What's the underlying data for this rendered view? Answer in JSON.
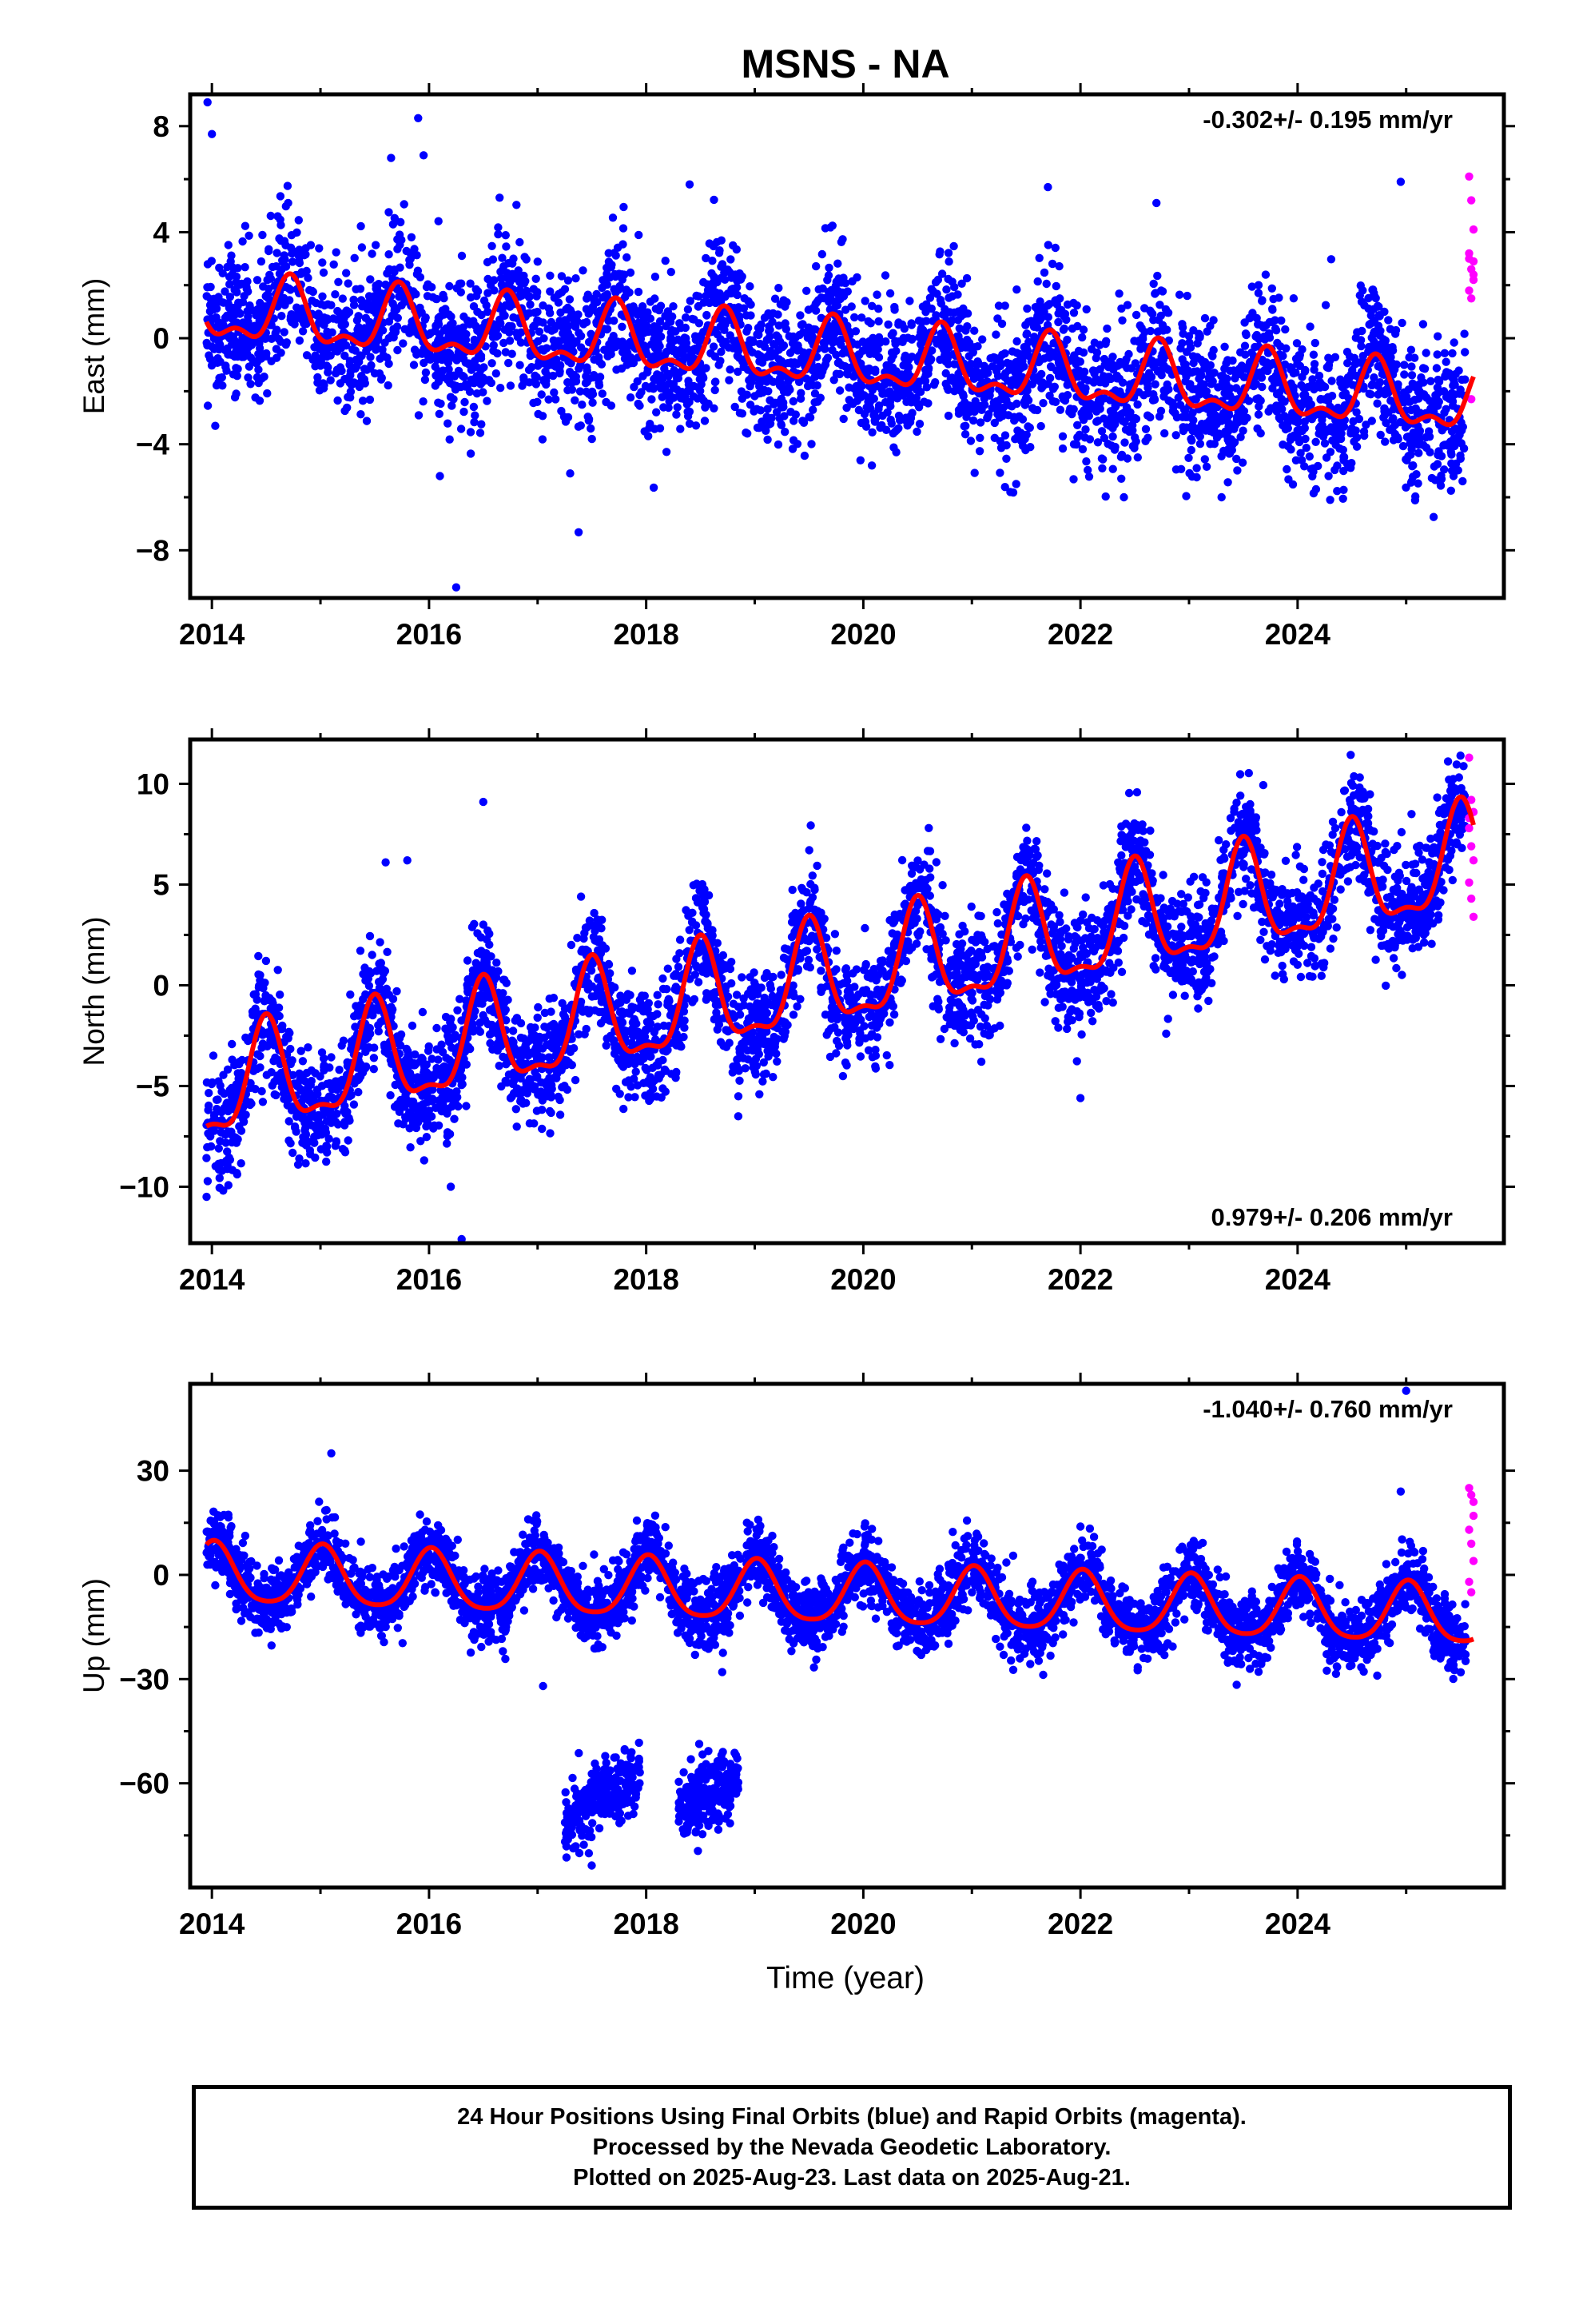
{
  "figure": {
    "title": "MSNS - NA",
    "xlabel": "Time (year)"
  },
  "footer": {
    "line1": "24 Hour Positions Using Final Orbits (blue) and Rapid Orbits (magenta).",
    "line2": "Processed by the Nevada Geodetic Laboratory.",
    "line3": "Plotted on 2025-Aug-23. Last data on 2025-Aug-21."
  },
  "colors": {
    "final_orbits": "#0000ff",
    "rapid_orbits": "#ff00ff",
    "model_fit": "#ff0000",
    "frame": "#000000"
  },
  "chart_data": [
    {
      "type": "scatter",
      "ylabel": "East (mm)",
      "rate_label": "-0.302+/- 0.195 mm/yr",
      "rate_position": "top-right",
      "xlim": [
        2013.8,
        2025.9
      ],
      "ylim": [
        -9.8,
        9.2
      ],
      "x_ticks": [
        2014,
        2016,
        2018,
        2020,
        2022,
        2024
      ],
      "x_minor_ticks": [
        2015,
        2017,
        2019,
        2021,
        2023,
        2025
      ],
      "y_ticks": [
        8,
        4,
        0,
        -4,
        -8
      ],
      "y_minor_ticks": [
        6,
        2,
        -2,
        -6
      ],
      "fit": {
        "trend_mm_per_yr": -0.302,
        "offset_2014": 1.0,
        "annual_amplitude": 1.1,
        "annual_phase_peak": 0.72,
        "semiannual_amplitude": 0.55,
        "semiannual_phase_peak": 0.72
      },
      "scatter_sd": 1.35,
      "series": [
        {
          "name": "Final Orbits",
          "x_range": [
            2013.95,
            2025.55
          ],
          "points_count": 4100
        },
        {
          "name": "Rapid Orbits",
          "x_range": [
            2025.57,
            2025.64
          ],
          "points_count": 25,
          "y_values": [
            6.1,
            5.2,
            4.1,
            3.2,
            2.6,
            2.4,
            1.8,
            1.5,
            2.2,
            3.0,
            -2.3,
            2.9
          ]
        }
      ],
      "outliers": [
        [
          2013.96,
          8.9
        ],
        [
          2014.0,
          7.7
        ],
        [
          2015.65,
          6.8
        ],
        [
          2015.9,
          8.3
        ],
        [
          2015.95,
          6.9
        ],
        [
          2016.25,
          -9.4
        ],
        [
          2016.1,
          -5.2
        ],
        [
          2016.65,
          5.3
        ],
        [
          2017.3,
          -5.1
        ],
        [
          2017.5,
          -3.8
        ],
        [
          2018.4,
          5.8
        ],
        [
          2021.7,
          5.7
        ],
        [
          2022.4,
          -6.0
        ],
        [
          2022.7,
          5.1
        ],
        [
          2023.3,
          -6.0
        ],
        [
          2024.3,
          -6.1
        ],
        [
          2024.95,
          5.9
        ]
      ]
    },
    {
      "type": "scatter",
      "ylabel": "North (mm)",
      "rate_label": "0.979+/- 0.206 mm/yr",
      "rate_position": "bottom-right",
      "xlim": [
        2013.8,
        2025.9
      ],
      "ylim": [
        -12.8,
        12.2
      ],
      "x_ticks": [
        2014,
        2016,
        2018,
        2020,
        2022,
        2024
      ],
      "x_minor_ticks": [
        2015,
        2017,
        2019,
        2021,
        2023,
        2025
      ],
      "y_ticks": [
        10,
        5,
        0,
        -5,
        -10
      ],
      "y_minor_ticks": [
        7.5,
        2.5,
        -2.5,
        -7.5
      ],
      "fit": {
        "trend_mm_per_yr": 0.979,
        "offset_2014": -5.3,
        "annual_amplitude": 2.5,
        "annual_phase_peak": 0.5,
        "semiannual_amplitude": 0.9,
        "semiannual_phase_peak": 0.5
      },
      "scatter_sd": 1.4,
      "series": [
        {
          "name": "Final Orbits",
          "x_range": [
            2013.95,
            2025.55
          ],
          "points_count": 4100
        },
        {
          "name": "Rapid Orbits",
          "x_range": [
            2025.57,
            2025.64
          ],
          "points_count": 25,
          "y_values": [
            11.3,
            9.2,
            8.6,
            7.8,
            6.9,
            6.2,
            5.1,
            4.3,
            3.4,
            8.3
          ]
        }
      ],
      "outliers": [
        [
          2016.5,
          9.1
        ],
        [
          2016.3,
          -12.6
        ],
        [
          2015.8,
          6.2
        ],
        [
          2015.6,
          6.1
        ],
        [
          2016.2,
          -10.0
        ],
        [
          2017.4,
          4.4
        ],
        [
          2025.5,
          11.4
        ],
        [
          2022.0,
          -5.6
        ]
      ]
    },
    {
      "type": "scatter",
      "ylabel": "Up (mm)",
      "rate_label": "-1.040+/- 0.760 mm/yr",
      "rate_position": "top-right",
      "xlim": [
        2013.8,
        2025.9
      ],
      "ylim": [
        -90,
        55
      ],
      "x_ticks": [
        2014,
        2016,
        2018,
        2020,
        2022,
        2024
      ],
      "x_minor_ticks": [
        2015,
        2017,
        2019,
        2021,
        2023,
        2025
      ],
      "y_ticks": [
        30,
        0,
        -30,
        -60
      ],
      "y_minor_ticks": [
        15,
        -15,
        -45,
        -75
      ],
      "fit": {
        "trend_mm_per_yr": -1.04,
        "offset_2014": 0.0,
        "annual_amplitude": 8.5,
        "annual_phase_peak": 0.02,
        "semiannual_amplitude": 1.5,
        "semiannual_phase_peak": 0.02
      },
      "scatter_sd": 5.0,
      "series": [
        {
          "name": "Final Orbits",
          "x_range": [
            2013.95,
            2025.55
          ],
          "points_count": 4100
        },
        {
          "name": "Rapid Orbits",
          "x_range": [
            2025.57,
            2025.64
          ],
          "points_count": 25,
          "y_values": [
            25,
            23,
            17,
            13,
            9,
            4,
            -2,
            -5,
            21
          ]
        }
      ],
      "offset_clusters": [
        {
          "x_range": [
            2017.25,
            2017.95
          ],
          "y_start": -72,
          "y_end": -57,
          "sd": 5.0
        },
        {
          "x_range": [
            2018.3,
            2018.85
          ],
          "y_start": -68,
          "y_end": -58,
          "sd": 5.0
        }
      ],
      "outliers": [
        [
          2025.0,
          53
        ],
        [
          2017.05,
          -32
        ],
        [
          2018.45,
          -23
        ],
        [
          2018.7,
          -28
        ],
        [
          2024.95,
          24
        ],
        [
          2015.1,
          35
        ]
      ]
    }
  ]
}
